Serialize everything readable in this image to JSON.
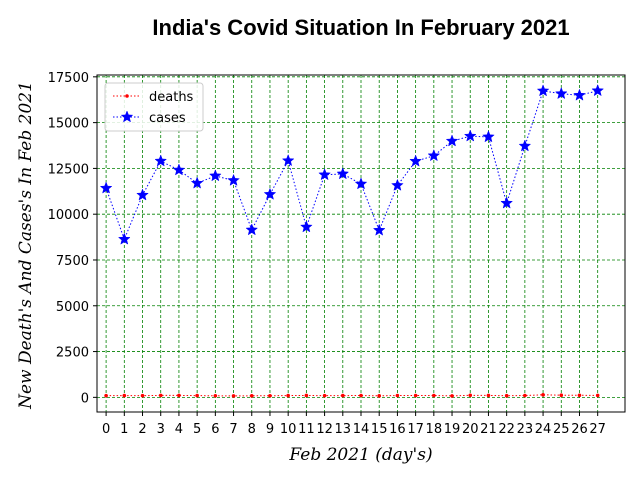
{
  "chart_data": {
    "type": "line",
    "title": "India's Covid Situation In February  2021",
    "xlabel": "Feb 2021 (day's)",
    "ylabel": "New Death's And Cases's In Feb 2021",
    "x": [
      0,
      1,
      2,
      3,
      4,
      5,
      6,
      7,
      8,
      9,
      10,
      11,
      12,
      13,
      14,
      15,
      16,
      17,
      18,
      19,
      20,
      21,
      22,
      23,
      24,
      25,
      26,
      27
    ],
    "xlim": [
      -0.5,
      28.5
    ],
    "ylim": [
      -800,
      17600
    ],
    "yticks": [
      0,
      2500,
      5000,
      7500,
      10000,
      12500,
      15000,
      17500
    ],
    "grid": true,
    "legend_position": "upper-left",
    "series": [
      {
        "name": "deaths",
        "color": "#ff0000",
        "linestyle": "dotted",
        "marker": "dot",
        "values": [
          94,
          95,
          94,
          106,
          107,
          95,
          85,
          78,
          84,
          87,
          97,
          103,
          91,
          95,
          101,
          83,
          100,
          101,
          101,
          81,
          112,
          105,
          89,
          101,
          138,
          117,
          113,
          107
        ]
      },
      {
        "name": "cases",
        "color": "#0000ff",
        "linestyle": "dotted",
        "marker": "star",
        "values": [
          11420,
          8630,
          11040,
          12900,
          12410,
          11690,
          12090,
          11840,
          9140,
          11080,
          12920,
          9300,
          12150,
          12200,
          11650,
          9120,
          11570,
          12890,
          13190,
          13990,
          14260,
          14220,
          10600,
          13720,
          16730,
          16580,
          16490,
          16740
        ]
      }
    ]
  }
}
